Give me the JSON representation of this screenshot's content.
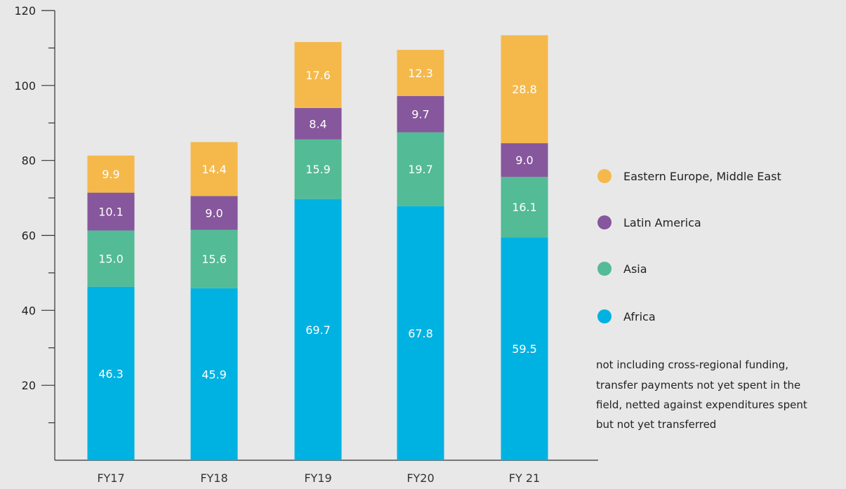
{
  "chart_data": {
    "type": "bar",
    "stacked": true,
    "categories": [
      "FY17",
      "FY18",
      "FY19",
      "FY20",
      "FY 21"
    ],
    "series": [
      {
        "name": "Africa",
        "color": "#00b2e2",
        "values": [
          46.3,
          45.9,
          69.7,
          67.8,
          59.5
        ]
      },
      {
        "name": "Asia",
        "color": "#53bb96",
        "values": [
          15.0,
          15.6,
          15.9,
          19.7,
          16.1
        ]
      },
      {
        "name": "Latin America",
        "color": "#86579c",
        "values": [
          10.1,
          9.0,
          8.4,
          9.7,
          9.0
        ]
      },
      {
        "name": "Eastern Europe, Middle East",
        "color": "#f5b94b",
        "values": [
          9.9,
          14.4,
          17.6,
          12.3,
          28.8
        ]
      }
    ],
    "y_ticks": [
      20,
      40,
      60,
      80,
      100,
      120
    ],
    "ylim": [
      0,
      120
    ],
    "grid": false,
    "legend_position": "right",
    "legend_order": [
      "Eastern Europe, Middle East",
      "Latin America",
      "Asia",
      "Africa"
    ],
    "note": "not including cross-regional funding, transfer payments not yet spent in the field, netted against expenditures spent but not yet transferred",
    "note_lines": [
      "not including cross-regional funding,",
      "transfer payments not yet spent in the",
      "field, netted against expenditures spent",
      "but not yet transferred"
    ]
  }
}
